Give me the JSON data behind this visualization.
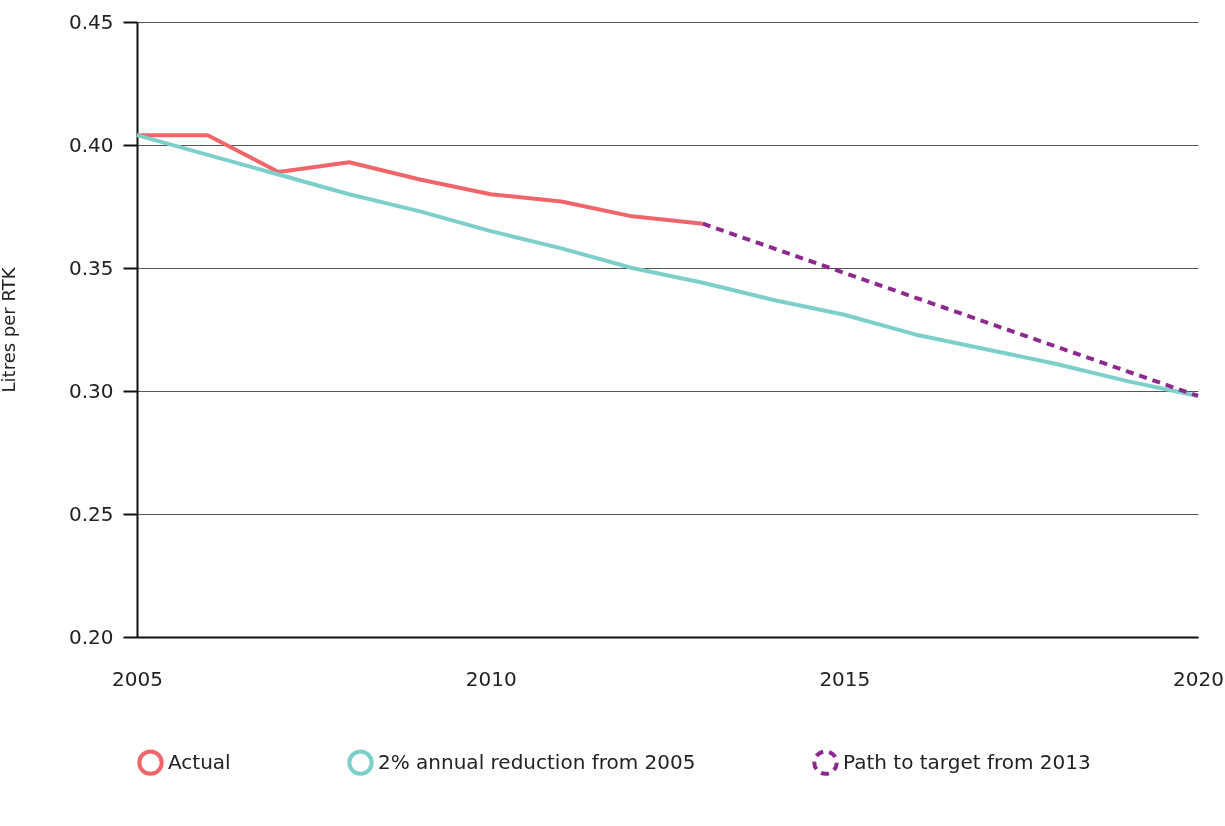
{
  "chart_data": {
    "type": "line",
    "ylabel": "Litres per RTK",
    "x": [
      2005,
      2006,
      2007,
      2008,
      2009,
      2010,
      2011,
      2012,
      2013,
      2014,
      2015,
      2016,
      2017,
      2018,
      2019,
      2020
    ],
    "series": [
      {
        "name": "Actual",
        "color": "#f0656a",
        "line_style": "solid",
        "x": [
          2005,
          2006,
          2007,
          2008,
          2009,
          2010,
          2011,
          2012,
          2013
        ],
        "values": [
          0.404,
          0.404,
          0.389,
          0.393,
          0.386,
          0.38,
          0.377,
          0.371,
          0.368
        ]
      },
      {
        "name": "2% annual reduction from 2005",
        "color": "#7dcfc9",
        "line_style": "solid",
        "values": [
          0.404,
          0.396,
          0.388,
          0.38,
          0.373,
          0.365,
          0.358,
          0.35,
          0.344,
          0.337,
          0.331,
          0.323,
          0.317,
          0.311,
          0.304,
          0.298
        ]
      },
      {
        "name": "Path to target from 2013",
        "color": "#8e2a8e",
        "line_style": "dashed",
        "x": [
          2013,
          2014,
          2015,
          2016,
          2017,
          2018,
          2019,
          2020
        ],
        "values": [
          0.368,
          0.358,
          0.348,
          0.338,
          0.328,
          0.318,
          0.308,
          0.298
        ]
      }
    ],
    "xlim": [
      2005,
      2020
    ],
    "xticks": [
      2005,
      2010,
      2015,
      2020
    ],
    "ylim": [
      0.2,
      0.45
    ],
    "yticks": [
      {
        "value": 0.2,
        "label": "0.20"
      },
      0.25,
      {
        "value": 0.3,
        "label": "0.30"
      },
      0.35,
      {
        "value": 0.4,
        "label": "0.40"
      },
      0.45
    ],
    "grid": "y",
    "legend": "bottom",
    "marker": "none"
  }
}
